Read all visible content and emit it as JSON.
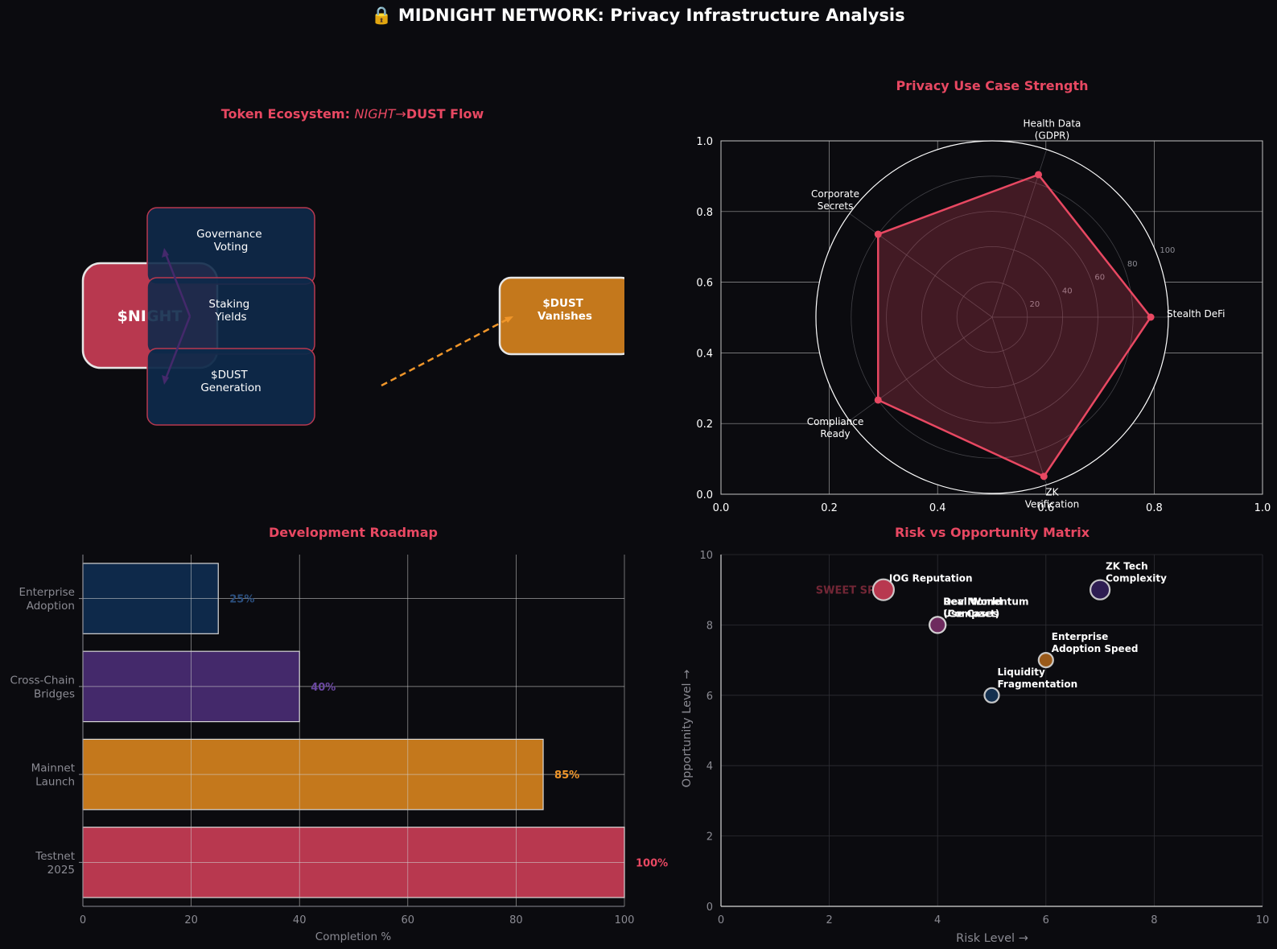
{
  "page": {
    "title": "🔒 MIDNIGHT NETWORK: Privacy Infrastructure Analysis"
  },
  "colors": {
    "background": "#0b0b0f",
    "accent": "#e84862",
    "night": "#b8384f",
    "navy": "#0e294a",
    "purple": "#44296b",
    "orange": "#c4781c",
    "dust_arrow": "#f0962a",
    "title": "#ffffff",
    "muted": "#8b8b93"
  },
  "chart_data": [
    {
      "type": "diagram",
      "title_prefix": "Token Ecosystem: ",
      "title_mid": "NIGHT",
      "title_arrow": "→",
      "title_suffix": "DUST Flow",
      "nodes": {
        "night": "$NIGHT",
        "governance": "Governance\nVoting",
        "staking": "Staking\nYields",
        "generation": "$DUST\nGeneration",
        "vanish": "$DUST\nVanishes"
      }
    },
    {
      "type": "radar",
      "title": "Privacy Use Case Strength",
      "categories": [
        "Stealth DeFi",
        "Health Data\n(GDPR)",
        "Corporate\nSecrets",
        "Compliance\nReady",
        "ZK\nVerification"
      ],
      "values": [
        90,
        85,
        80,
        80,
        95
      ],
      "rlim": [
        0,
        100
      ],
      "r_ticks": [
        "20",
        "40",
        "60",
        "80",
        "100"
      ],
      "frame_x_ticks": [
        "0.0",
        "0.2",
        "0.4",
        "0.6",
        "0.8",
        "1.0"
      ],
      "frame_y_ticks": [
        "0.0",
        "0.2",
        "0.4",
        "0.6",
        "0.8",
        "1.0"
      ]
    },
    {
      "type": "bar",
      "orientation": "horizontal",
      "title": "Development Roadmap",
      "xlabel": "Completion %",
      "categories": [
        "Enterprise\nAdoption",
        "Cross-Chain\nBridges",
        "Mainnet\nLaunch",
        "Testnet\n2025"
      ],
      "values": [
        25,
        40,
        85,
        100
      ],
      "value_labels": [
        "25%",
        "40%",
        "85%",
        "100%"
      ],
      "bar_colors": [
        "#0e294a",
        "#44296b",
        "#c4781c",
        "#b8384f"
      ],
      "label_colors": [
        "#2b4f7e",
        "#6a47a0",
        "#f0962a",
        "#e84862"
      ],
      "xlim": [
        0,
        100
      ],
      "x_ticks": [
        "0",
        "20",
        "40",
        "60",
        "80",
        "100"
      ]
    },
    {
      "type": "scatter",
      "title": "Risk vs Opportunity Matrix",
      "xlabel": "Risk Level →",
      "ylabel": "Opportunity Level →",
      "xlim": [
        0,
        10
      ],
      "ylim": [
        0,
        10
      ],
      "x_ticks": [
        "0",
        "2",
        "4",
        "6",
        "8",
        "10"
      ],
      "y_ticks": [
        "0",
        "2",
        "4",
        "6",
        "8",
        "10"
      ],
      "annotation": "SWEET SPOT",
      "points": [
        {
          "label": "IOG Reputation",
          "x": 3,
          "y": 9,
          "color": "#b8384f",
          "size": 1.3
        },
        {
          "label": "Dev Momentum\n(Compact)",
          "x": 4,
          "y": 8,
          "color": "#6e2a5e",
          "size": 1.0
        },
        {
          "label": "Real World\nUse Cases",
          "x": 4,
          "y": 8,
          "color": "#6e2a5e",
          "size": 1.0
        },
        {
          "label": "ZK Tech\nComplexity",
          "x": 7,
          "y": 9,
          "color": "#2e1d52",
          "size": 1.2
        },
        {
          "label": "Enterprise\nAdoption Speed",
          "x": 6,
          "y": 7,
          "color": "#9a5a1a",
          "size": 0.9
        },
        {
          "label": "Liquidity\nFragmentation",
          "x": 5,
          "y": 6,
          "color": "#14304f",
          "size": 0.9
        }
      ]
    }
  ]
}
